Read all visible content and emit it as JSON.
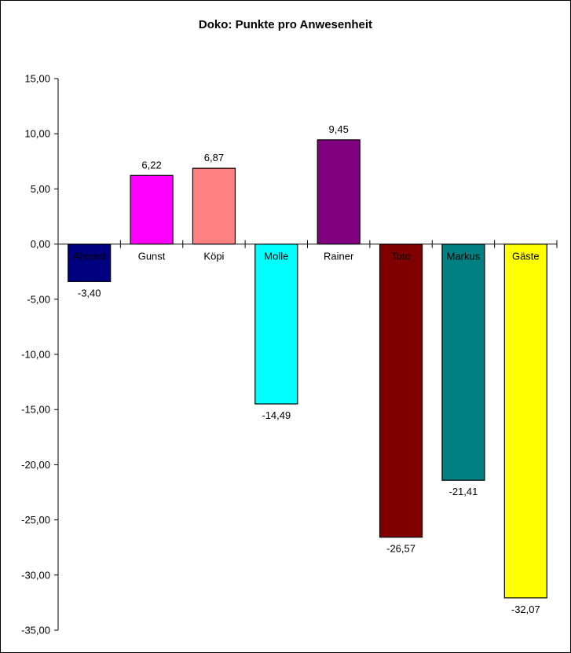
{
  "chart_data": {
    "type": "bar",
    "title": "Doko: Punkte pro Anwesenheit",
    "xlabel": "",
    "ylabel": "",
    "categories": [
      "Ahmed",
      "Gunst",
      "Köpi",
      "Molle",
      "Rainer",
      "Toto",
      "Markus",
      "Gäste"
    ],
    "values": [
      -3.4,
      6.22,
      6.87,
      -14.49,
      9.45,
      -26.57,
      -21.41,
      -32.07
    ],
    "value_labels": [
      "-3,40",
      "6,22",
      "6,87",
      "-14,49",
      "9,45",
      "-26,57",
      "-21,41",
      "-32,07"
    ],
    "colors": [
      "#000080",
      "#ff00ff",
      "#ff8080",
      "#00ffff",
      "#800080",
      "#800000",
      "#008080",
      "#ffff00"
    ],
    "ylim": [
      -35,
      15
    ],
    "yticks": [
      15,
      10,
      5,
      0,
      -5,
      -10,
      -15,
      -20,
      -25,
      -30,
      -35
    ],
    "ytick_labels": [
      "15,00",
      "10,00",
      "5,00",
      "0,00",
      "-5,00",
      "-10,00",
      "-15,00",
      "-20,00",
      "-25,00",
      "-30,00",
      "-35,00"
    ],
    "grid": false,
    "legend": "none"
  }
}
